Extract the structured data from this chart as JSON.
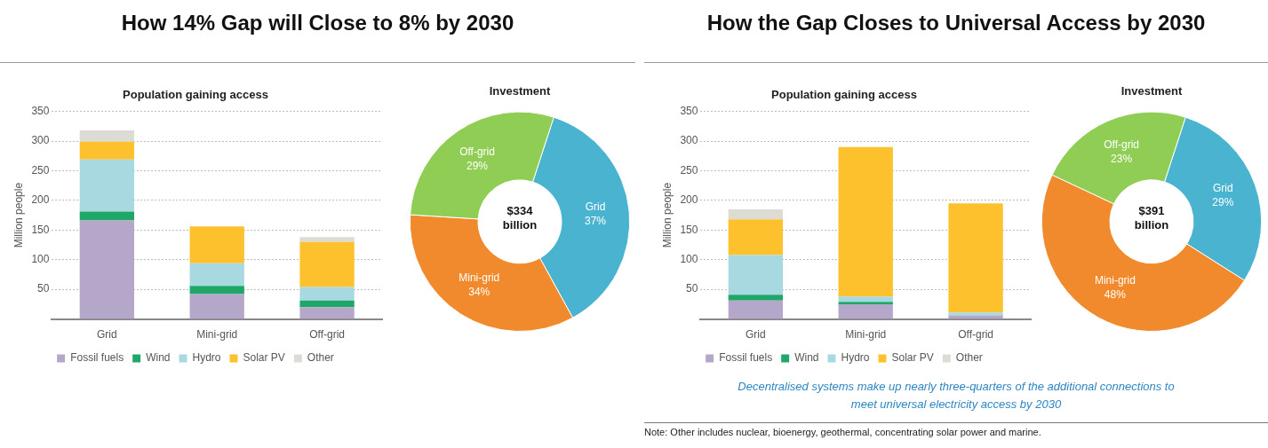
{
  "chart_data": [
    {
      "type": "bar",
      "title": "How 14% Gap will Close to 8% by 2030",
      "subtitle": "Population gaining access",
      "ylabel": "Million people",
      "categories": [
        "Grid",
        "Mini-grid",
        "Off-grid"
      ],
      "stacked": true,
      "ylim": [
        0,
        350
      ],
      "yticks": [
        50,
        100,
        150,
        200,
        250,
        300,
        350
      ],
      "grid": "y",
      "legend": "bottom",
      "series": [
        {
          "name": "Fossil fuels",
          "color": "#b4a7c9",
          "values": [
            166,
            42,
            20
          ]
        },
        {
          "name": "Wind",
          "color": "#1fa76a",
          "values": [
            15,
            14,
            11
          ]
        },
        {
          "name": "Hydro",
          "color": "#a8d8e0",
          "values": [
            88,
            38,
            23
          ]
        },
        {
          "name": "Solar PV",
          "color": "#fcc12d",
          "values": [
            30,
            62,
            76
          ]
        },
        {
          "name": "Other",
          "color": "#dcdcd4",
          "values": [
            19,
            null,
            8
          ]
        }
      ]
    },
    {
      "type": "donut",
      "title": "Investment",
      "categories": [
        "Grid",
        "Mini-grid",
        "Off-grid"
      ],
      "values": [
        37,
        34,
        29
      ],
      "value_labels": [
        "37%",
        "34%",
        "29%"
      ],
      "colors": [
        "#4ab4d0",
        "#f08a2c",
        "#8fcd55"
      ],
      "annotations": [
        "$334 billion"
      ]
    },
    {
      "type": "bar",
      "title": "How the Gap Closes to Universal Access by 2030",
      "subtitle": "Population gaining access",
      "ylabel": "Million people",
      "categories": [
        "Grid",
        "Mini-grid",
        "Off-grid"
      ],
      "stacked": true,
      "ylim": [
        0,
        350
      ],
      "yticks": [
        50,
        100,
        150,
        200,
        250,
        300,
        350
      ],
      "grid": "y",
      "legend": "bottom",
      "series": [
        {
          "name": "Fossil fuels",
          "color": "#b4a7c9",
          "values": [
            31,
            25,
            6
          ]
        },
        {
          "name": "Wind",
          "color": "#1fa76a",
          "values": [
            10,
            4,
            0
          ]
        },
        {
          "name": "Hydro",
          "color": "#a8d8e0",
          "values": [
            67,
            9,
            5
          ]
        },
        {
          "name": "Solar PV",
          "color": "#fcc12d",
          "values": [
            60,
            252,
            184
          ]
        },
        {
          "name": "Other",
          "color": "#dcdcd4",
          "values": [
            17,
            0,
            0
          ]
        }
      ],
      "annotations": [
        "Decentralised systems make up nearly three-quarters of the additional connections  to meet universal electricity access by 2030",
        "Note: Other includes nuclear, bioenergy, geothermal, concentrating solar power and marine."
      ]
    },
    {
      "type": "donut",
      "title": "Investment",
      "categories": [
        "Grid",
        "Mini-grid",
        "Off-grid"
      ],
      "values": [
        29,
        48,
        23
      ],
      "value_labels": [
        "29%",
        "48%",
        "23%"
      ],
      "colors": [
        "#4ab4d0",
        "#f08a2c",
        "#8fcd55"
      ],
      "annotations": [
        "$391 billion"
      ]
    }
  ]
}
